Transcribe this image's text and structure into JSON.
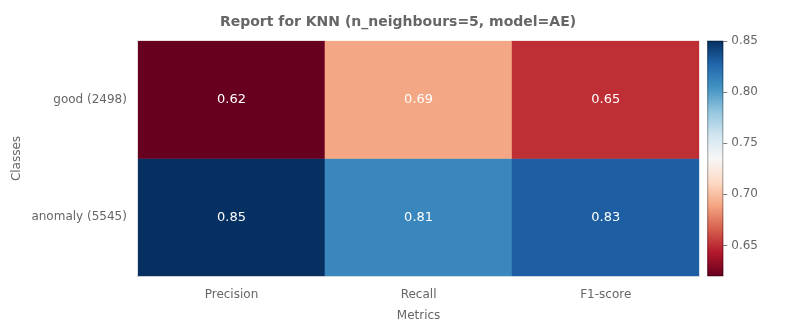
{
  "chart_data": {
    "type": "heatmap",
    "title": "Report for KNN (n_neighbours=5, model=AE)",
    "xlabel": "Metrics",
    "ylabel": "Classes",
    "categories": [
      "Precision",
      "Recall",
      "F1-score"
    ],
    "rows": [
      "good (2498)",
      "anomaly (5545)"
    ],
    "values": [
      [
        0.62,
        0.69,
        0.65
      ],
      [
        0.85,
        0.81,
        0.83
      ]
    ],
    "colorbar_range": [
      0.62,
      0.85
    ],
    "colorbar_ticks": [
      0.65,
      {
        "value": 0.7,
        "label": "0.70"
      },
      0.75,
      {
        "value": 0.8,
        "label": "0.80"
      },
      0.85
    ],
    "data_labels": true,
    "grid": false
  }
}
